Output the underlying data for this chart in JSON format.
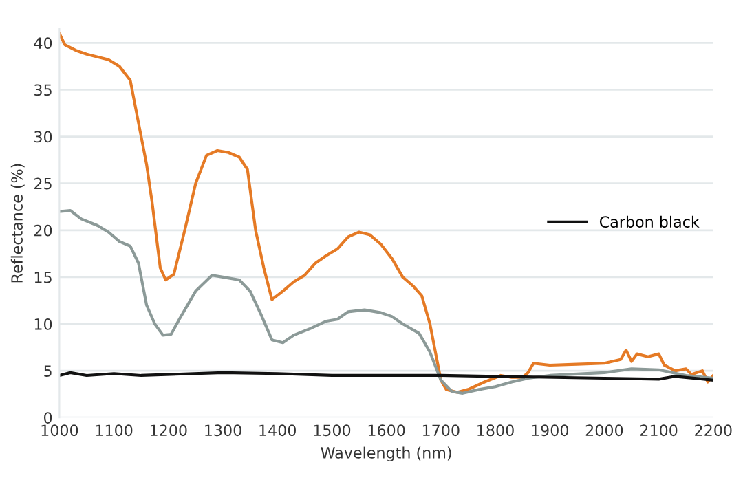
{
  "chart_data": {
    "type": "line",
    "xlabel": "Wavelength (nm)",
    "ylabel": "Reflectance (%)",
    "xlim": [
      1000,
      2200
    ],
    "xticks": [
      1000,
      1100,
      1200,
      1300,
      1400,
      1500,
      1600,
      1700,
      1800,
      1900,
      2000,
      2100,
      2200
    ],
    "ylim": [
      0,
      41.5
    ],
    "yticks": [
      0,
      5,
      10,
      15,
      20,
      25,
      30,
      35,
      40
    ],
    "grid": "y",
    "legend": "center right",
    "marker": "none",
    "line_style": "solid",
    "series": [
      {
        "color": "#e57a25",
        "x": [
          1000,
          1010,
          1030,
          1050,
          1070,
          1090,
          1110,
          1130,
          1150,
          1160,
          1170,
          1185,
          1195,
          1210,
          1230,
          1250,
          1270,
          1290,
          1310,
          1330,
          1345,
          1360,
          1375,
          1390,
          1410,
          1430,
          1450,
          1470,
          1490,
          1510,
          1530,
          1550,
          1570,
          1590,
          1610,
          1630,
          1650,
          1665,
          1680,
          1700,
          1710,
          1730,
          1750,
          1780,
          1810,
          1830,
          1850,
          1860,
          1870,
          1900,
          1950,
          2000,
          2030,
          2040,
          2050,
          2060,
          2080,
          2100,
          2110,
          2130,
          2150,
          2160,
          2180,
          2190,
          2200
        ],
        "values": [
          41,
          39.8,
          39.2,
          38.8,
          38.5,
          38.2,
          37.5,
          36,
          30,
          27,
          23,
          16,
          14.7,
          15.3,
          20,
          25,
          28,
          28.5,
          28.3,
          27.8,
          26.5,
          20,
          16,
          12.6,
          13.5,
          14.5,
          15.2,
          16.5,
          17.3,
          18,
          19.3,
          19.8,
          19.5,
          18.5,
          17,
          15,
          14,
          13,
          10,
          4,
          3,
          2.7,
          3,
          3.8,
          4.5,
          4.3,
          4.3,
          4.8,
          5.8,
          5.6,
          5.7,
          5.8,
          6.2,
          7.2,
          6,
          6.8,
          6.5,
          6.8,
          5.6,
          5,
          5.2,
          4.6,
          5,
          3.8,
          4.5
        ]
      },
      {
        "color": "#8c9a98",
        "x": [
          1000,
          1020,
          1040,
          1070,
          1090,
          1110,
          1130,
          1145,
          1160,
          1175,
          1190,
          1205,
          1220,
          1250,
          1280,
          1300,
          1330,
          1350,
          1370,
          1390,
          1410,
          1430,
          1460,
          1490,
          1510,
          1530,
          1560,
          1590,
          1610,
          1630,
          1660,
          1680,
          1700,
          1720,
          1740,
          1770,
          1800,
          1830,
          1860,
          1900,
          2000,
          2050,
          2100,
          2150,
          2200
        ],
        "values": [
          22,
          22.1,
          21.2,
          20.5,
          19.8,
          18.8,
          18.3,
          16.5,
          12,
          10,
          8.8,
          8.9,
          10.5,
          13.5,
          15.2,
          15,
          14.7,
          13.5,
          11,
          8.3,
          8,
          8.8,
          9.5,
          10.3,
          10.5,
          11.3,
          11.5,
          11.2,
          10.8,
          10,
          9,
          7,
          4,
          2.8,
          2.6,
          3,
          3.3,
          3.8,
          4.2,
          4.5,
          4.8,
          5.2,
          5.1,
          4.5,
          4.2
        ]
      },
      {
        "name": "Carbon black",
        "color": "#111111",
        "x": [
          1000,
          1020,
          1050,
          1100,
          1150,
          1300,
          1400,
          1500,
          1700,
          1800,
          2000,
          2100,
          2130,
          2200
        ],
        "values": [
          4.5,
          4.8,
          4.5,
          4.7,
          4.5,
          4.8,
          4.7,
          4.5,
          4.5,
          4.4,
          4.2,
          4.1,
          4.4,
          4.0
        ]
      }
    ]
  }
}
